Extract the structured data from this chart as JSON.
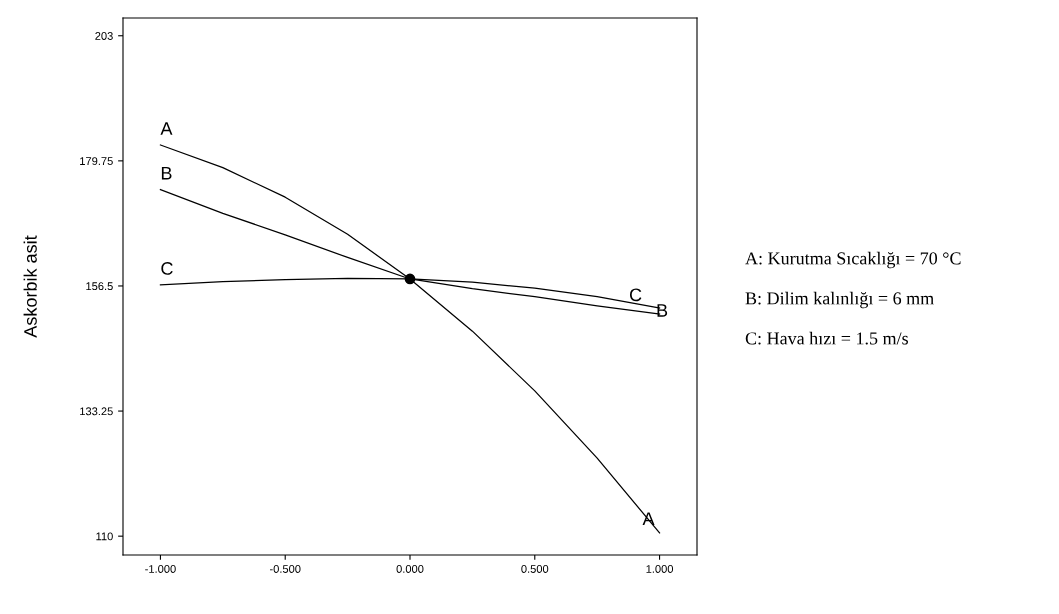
{
  "chart_data": {
    "type": "line",
    "ylabel": "Askorbik asit",
    "x": [
      -1,
      -0.75,
      -0.5,
      -0.25,
      0,
      0.25,
      0.5,
      0.75,
      1
    ],
    "series": [
      {
        "name": "A",
        "color": "#000000",
        "values": [
          182.7,
          178.5,
          173.0,
          166.1,
          157.8,
          148.1,
          137.0,
          124.5,
          110.6
        ]
      },
      {
        "name": "B",
        "color": "#000000",
        "values": [
          174.4,
          170.0,
          166.0,
          161.8,
          157.8,
          156.0,
          154.5,
          152.8,
          151.3
        ]
      },
      {
        "name": "C",
        "color": "#000000",
        "values": [
          156.7,
          157.3,
          157.7,
          157.9,
          157.8,
          157.2,
          156.1,
          154.5,
          152.4
        ]
      },
      {
        "type": "scatter",
        "color": "#000000",
        "x": [
          0
        ],
        "values": [
          157.8
        ],
        "marker": "circle"
      }
    ],
    "xlim": [
      -1.15,
      1.15
    ],
    "xticks": [
      {
        "value": -1,
        "label": "-1.000"
      },
      {
        "value": -0.5,
        "label": "-0.500"
      },
      {
        "value": 0,
        "label": "0.000"
      },
      {
        "value": 0.5,
        "label": "0.500"
      },
      {
        "value": 1,
        "label": "1.000"
      }
    ],
    "ylim": [
      106.5,
      206.3
    ],
    "yticks": [
      110,
      133.25,
      156.5,
      179.75,
      203
    ],
    "grid": false,
    "legend": false,
    "marker": "none",
    "line_style": "solid",
    "annotations": [
      "A: Kurutma Sıcaklığı = 70 °C",
      "B: Dilim kalınlığı = 6 mm",
      "C: Hava hızı = 1.5 m/s"
    ]
  }
}
